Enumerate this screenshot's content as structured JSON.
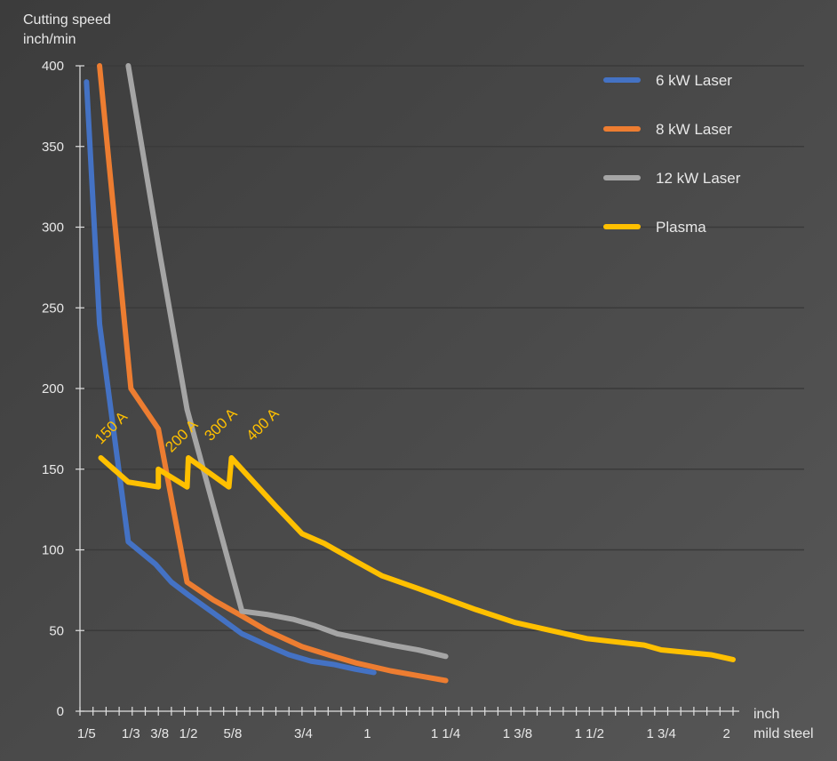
{
  "chart_data": {
    "type": "line",
    "title": "",
    "ylabel": [
      "Cutting speed",
      "inch/min"
    ],
    "xlabel": [
      "inch",
      "mild steel"
    ],
    "ylim": [
      0,
      400
    ],
    "yticks": [
      0,
      50,
      100,
      150,
      200,
      250,
      300,
      350,
      400
    ],
    "xlim": [
      0,
      50
    ],
    "xtick_count": 50,
    "xtick_labels": [
      {
        "label": "1/5",
        "pos": 0.5
      },
      {
        "label": "1/3",
        "pos": 3.9
      },
      {
        "label": "3/8",
        "pos": 6.1
      },
      {
        "label": "1/2",
        "pos": 8.3
      },
      {
        "label": "5/8",
        "pos": 11.7
      },
      {
        "label": "3/4",
        "pos": 17.1
      },
      {
        "label": "1",
        "pos": 22.0
      },
      {
        "label": "1 1/4",
        "pos": 28.0
      },
      {
        "label": "1 3/8",
        "pos": 33.5
      },
      {
        "label": "1 1/2",
        "pos": 39.0
      },
      {
        "label": "1 3/4",
        "pos": 44.5
      },
      {
        "label": "2",
        "pos": 49.5
      }
    ],
    "grid": true,
    "legend_position": "top-right",
    "series": [
      {
        "name": "6 kW Laser",
        "color": "#4472c4",
        "x": [
          0.5,
          1.5,
          3.7,
          5.8,
          7,
          8.3,
          10.2,
          12.4,
          14.3,
          16,
          17.7,
          19.4,
          21.1,
          22.5
        ],
        "y": [
          390,
          240,
          105,
          91,
          80,
          72,
          61,
          48,
          41,
          35,
          31,
          29,
          26,
          24
        ]
      },
      {
        "name": "8 kW Laser",
        "color": "#ed7d31",
        "x": [
          1.5,
          3.9,
          6,
          8.2,
          10.2,
          12.4,
          14.3,
          17,
          19,
          21.1,
          23.8,
          25.9,
          28
        ],
        "y": [
          400,
          200,
          175,
          80,
          69,
          59,
          50,
          40,
          35,
          30,
          25,
          22,
          19
        ]
      },
      {
        "name": "12 kW Laser",
        "color": "#a5a5a5",
        "x": [
          3.7,
          6.1,
          8.2,
          12.4,
          14.3,
          16.3,
          18,
          19.7,
          21.5,
          23.8,
          25.9,
          28
        ],
        "y": [
          400,
          284,
          187,
          62,
          60,
          57,
          53,
          48,
          45,
          41,
          38,
          34
        ]
      },
      {
        "name": "Plasma",
        "color": "#ffc000",
        "x": [
          1.6,
          3.7,
          6,
          6,
          8.2,
          8.3,
          11.4,
          11.6,
          15,
          17,
          18.7,
          21.1,
          23.1,
          25.9,
          30.3,
          33.3,
          38.8,
          43.2,
          44.5,
          48.3,
          50
        ],
        "y": [
          157,
          142,
          139,
          150,
          139,
          157,
          139,
          157,
          127,
          110,
          104,
          93,
          84,
          76,
          63,
          55,
          45,
          41,
          38,
          35,
          32
        ]
      }
    ],
    "annotations": [
      {
        "text": "150 A",
        "x": 1.6,
        "y": 165
      },
      {
        "text": "200 A",
        "x": 7.0,
        "y": 160
      },
      {
        "text": "300 A",
        "x": 10.0,
        "y": 167
      },
      {
        "text": "400 A",
        "x": 13.2,
        "y": 167
      }
    ]
  }
}
